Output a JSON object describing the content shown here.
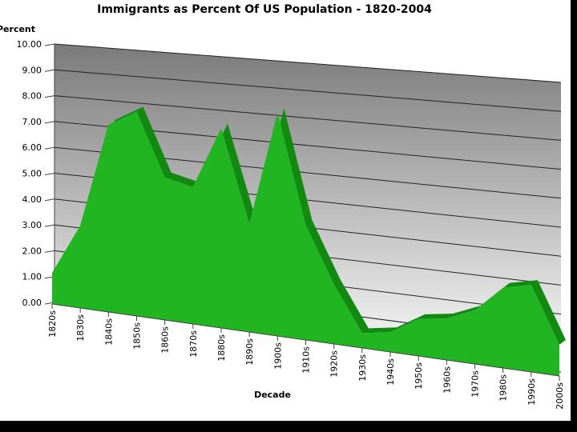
{
  "chart_data": {
    "type": "area3d",
    "title": "Immigrants as Percent Of US Population - 1820-2004",
    "y_label": "Percent",
    "x_label": "Decade",
    "categories": [
      "1820s",
      "1830s",
      "1840s",
      "1850s",
      "1860s",
      "1870s",
      "1880s",
      "1890s",
      "1900s",
      "1910s",
      "1920s",
      "1930s",
      "1940s",
      "1950s",
      "1960s",
      "1970s",
      "1980s",
      "1990s",
      "2000s"
    ],
    "values": [
      1.2,
      3.2,
      7.3,
      8.0,
      5.6,
      5.4,
      7.9,
      4.3,
      8.9,
      4.6,
      2.4,
      0.6,
      0.8,
      1.5,
      1.7,
      2.2,
      3.3,
      3.6,
      1.3
    ],
    "color": "#22b522",
    "ylim": [
      0,
      10
    ],
    "yticks": [
      {
        "value": 0,
        "label": "0.00"
      },
      {
        "value": 1,
        "label": "1.00"
      },
      {
        "value": 2,
        "label": "2.00"
      },
      {
        "value": 3,
        "label": "3.00"
      },
      {
        "value": 4,
        "label": "4.00"
      },
      {
        "value": 5,
        "label": "5.00"
      },
      {
        "value": 6,
        "label": "6.00"
      },
      {
        "value": 7,
        "label": "7.00"
      },
      {
        "value": 8,
        "label": "8.00"
      },
      {
        "value": 9,
        "label": "9.00"
      },
      {
        "value": 10,
        "label": "10.00"
      }
    ],
    "grid": true
  }
}
